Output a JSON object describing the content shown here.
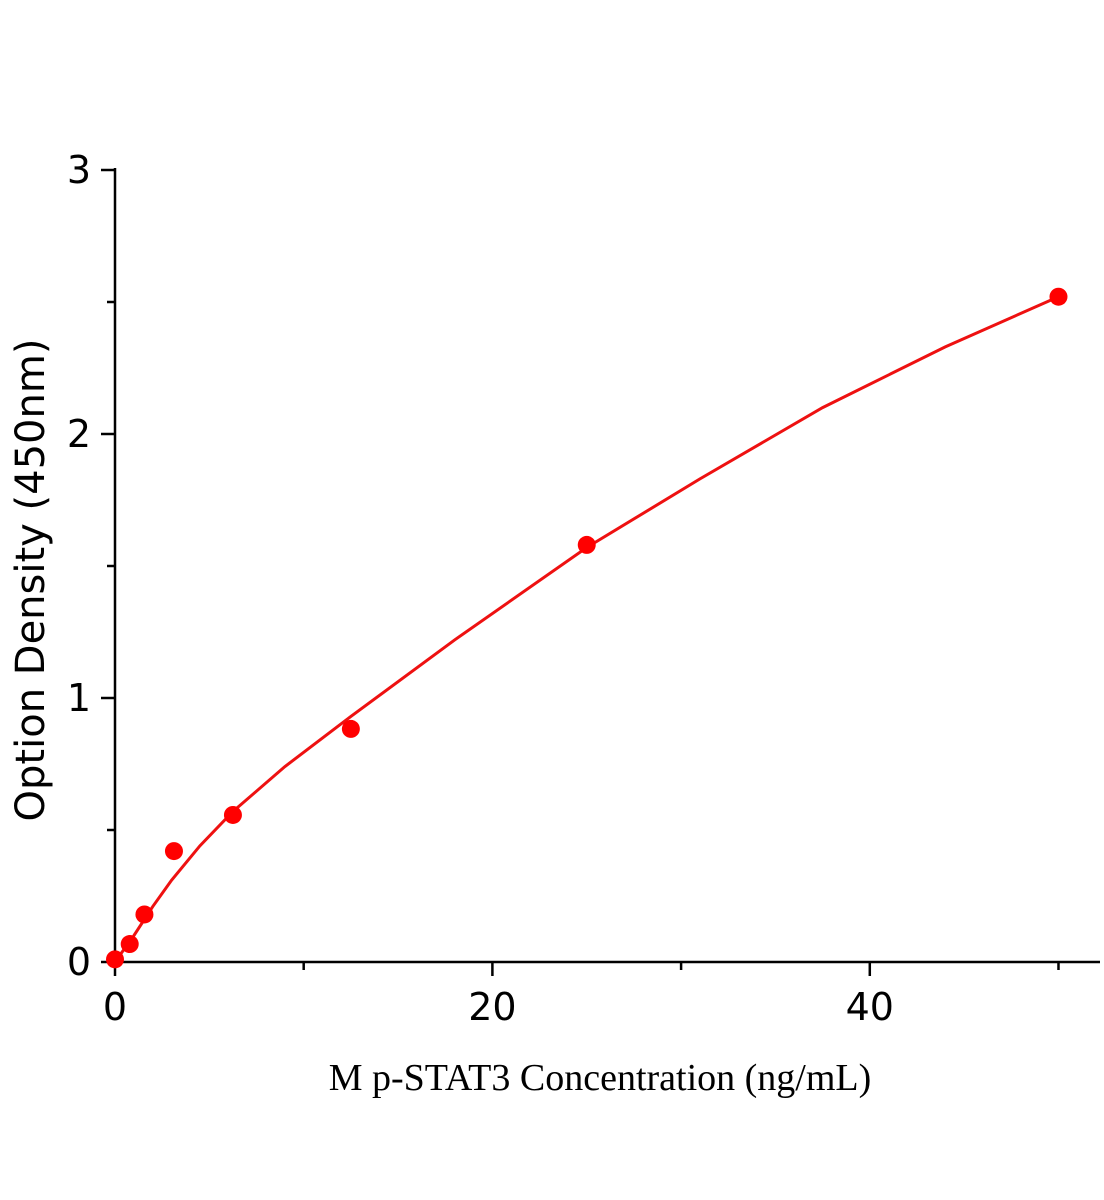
{
  "chart_data": {
    "type": "scatter",
    "xlabel": "M p-STAT3 Concentration (ng/mL)",
    "ylabel": "Option Density  (450nm)",
    "xlim": [
      0,
      52.2
    ],
    "xticks": [
      0,
      20,
      40
    ],
    "xminorticks": [
      10,
      30,
      50
    ],
    "ylim": [
      0,
      3
    ],
    "yticks": [
      0,
      1,
      2,
      3
    ],
    "yminorticks": [
      0.5,
      1.5,
      2.5
    ],
    "color": "#ff0000",
    "x": [
      0,
      0.78,
      1.56,
      3.125,
      6.25,
      12.5,
      25,
      50
    ],
    "values": [
      0.01,
      0.068,
      0.18,
      0.42,
      0.557,
      0.883,
      1.58,
      2.52
    ],
    "fit": {
      "x": [
        0,
        0.5,
        1,
        2,
        3,
        4.5,
        6.25,
        9,
        12.5,
        18,
        25,
        31,
        37.5,
        44,
        50
      ],
      "values": [
        0,
        0.05,
        0.1,
        0.21,
        0.31,
        0.44,
        0.57,
        0.74,
        0.93,
        1.22,
        1.57,
        1.83,
        2.1,
        2.33,
        2.52
      ],
      "color": "#ee1111"
    }
  }
}
